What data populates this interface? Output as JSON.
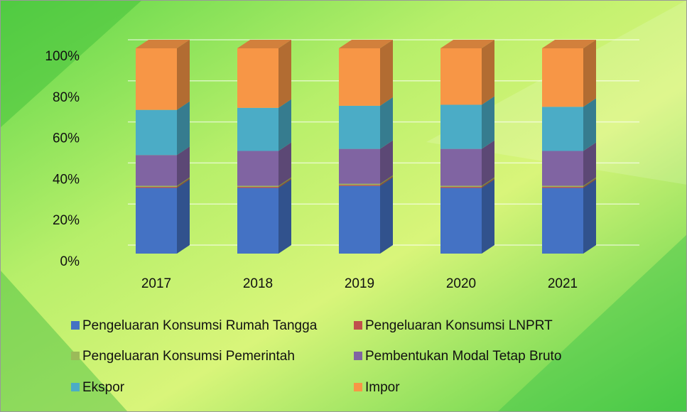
{
  "chart_data": {
    "type": "bar3d_stacked",
    "categories": [
      "2017",
      "2018",
      "2019",
      "2020",
      "2021"
    ],
    "series": [
      {
        "name": "Pengeluaran Konsumsi Rumah Tangga",
        "color": "#4472c4",
        "values": [
          32,
          32,
          33,
          32,
          32
        ]
      },
      {
        "name": "Pengeluaran Konsumsi LNPRT",
        "color": "#c0504d",
        "values": [
          0.5,
          0.5,
          0.5,
          0.5,
          0.5
        ]
      },
      {
        "name": "Pengeluaran Konsumsi Pemerintah",
        "color": "#9bbb59",
        "values": [
          0.5,
          0.5,
          0.5,
          0.5,
          0.5
        ]
      },
      {
        "name": "Pembentukan Modal Tetap Bruto",
        "color": "#8064a2",
        "values": [
          15,
          17,
          17,
          18,
          17
        ]
      },
      {
        "name": "Ekspor",
        "color": "#4bacc6",
        "values": [
          22,
          21,
          21,
          21.5,
          21.5
        ]
      },
      {
        "name": "Impor",
        "color": "#f79646",
        "values": [
          30,
          29,
          28,
          27.5,
          28.5
        ]
      }
    ],
    "ylim": [
      0,
      100
    ],
    "yticks": [
      {
        "value": 0,
        "label": "0%"
      },
      {
        "value": 20,
        "label": "20%"
      },
      {
        "value": 40,
        "label": "40%"
      },
      {
        "value": 60,
        "label": "60%"
      },
      {
        "value": 80,
        "label": "80%"
      },
      {
        "value": 100,
        "label": "100%"
      }
    ],
    "grid": true,
    "legend": "bottom"
  }
}
